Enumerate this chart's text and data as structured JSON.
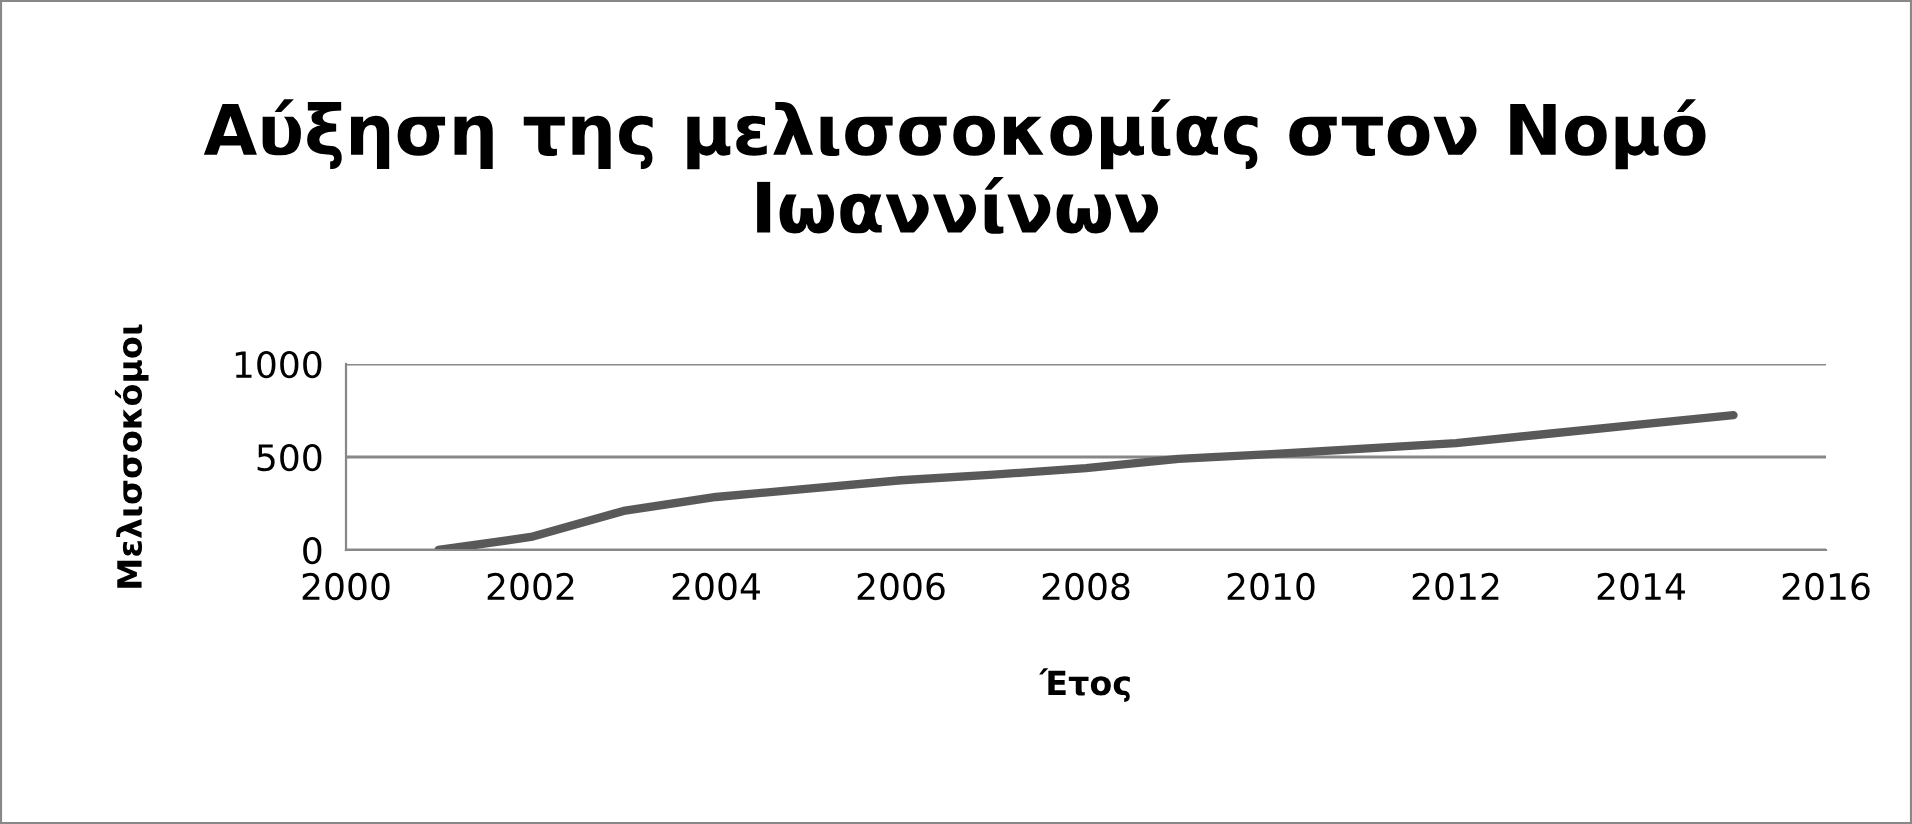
{
  "chart_data": {
    "type": "line",
    "title": "Αύξηση της μελισσοκομίας στον Νομό Ιωαννίνων",
    "xlabel": "Έτος",
    "ylabel": "Μελισσοκόμοι",
    "x": [
      2001,
      2002,
      2003,
      2004,
      2005,
      2006,
      2007,
      2008,
      2009,
      2010,
      2011,
      2012,
      2013,
      2014,
      2015
    ],
    "series": [
      {
        "color": "#595959",
        "values": [
          0,
          70,
          210,
          285,
          330,
          375,
          405,
          440,
          490,
          515,
          545,
          575,
          625,
          675,
          725
        ]
      }
    ],
    "xlim": [
      2000,
      2016
    ],
    "xticks": [
      2000,
      2002,
      2004,
      2006,
      2008,
      2010,
      2012,
      2014,
      2016
    ],
    "ylim": [
      0,
      1000
    ],
    "yticks": [
      0,
      500,
      1000
    ],
    "grid": "y",
    "legend": false,
    "marker": "none",
    "line_style": "solid"
  }
}
